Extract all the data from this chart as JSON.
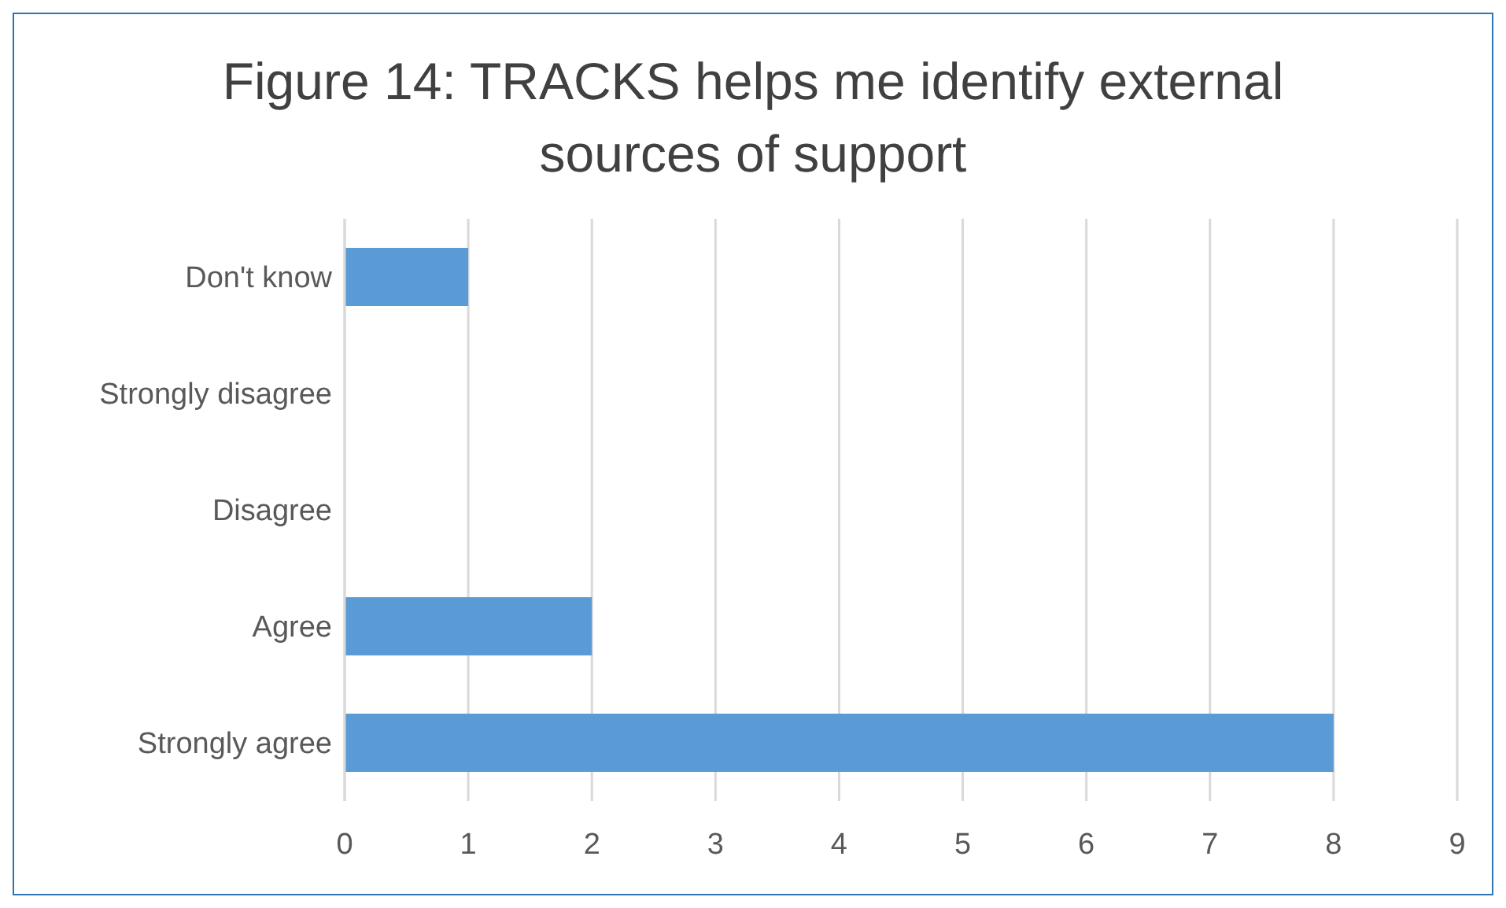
{
  "chart_data": {
    "type": "bar",
    "orientation": "horizontal",
    "title": "Figure 14: TRACKS helps me identify external sources of support",
    "categories": [
      "Don't know",
      "Strongly disagree",
      "Disagree",
      "Agree",
      "Strongly agree"
    ],
    "values": [
      1,
      0,
      0,
      2,
      8
    ],
    "color": "#5b9bd5",
    "xlim": [
      0,
      9
    ],
    "xticks": [
      0,
      1,
      2,
      3,
      4,
      5,
      6,
      7,
      8,
      9
    ],
    "grid": "x",
    "legend": false
  }
}
